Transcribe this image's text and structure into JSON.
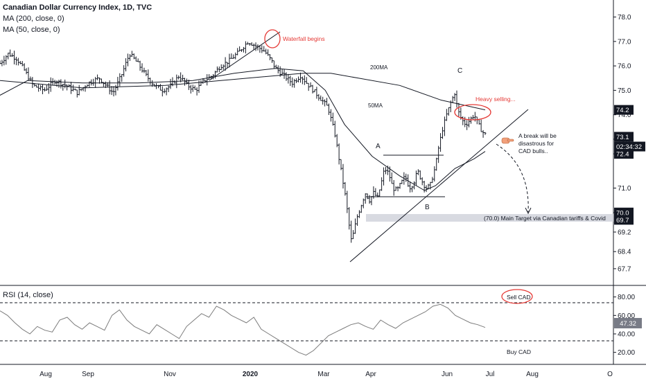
{
  "header": {
    "title": "Canadian Dollar Currency Index, 1D, TVC",
    "ma200_label": "MA (200, close, 0)",
    "ma50_label": "MA (50, close, 0)"
  },
  "rsi_panel": {
    "label": "RSI (14, close)",
    "value_badge": "47.32"
  },
  "colors": {
    "price_bars": "#131722",
    "annotation_red": "#e53935",
    "target_zone": "#d1d4dc",
    "rsi_line": "#7b7b7b",
    "badge_dark": "#131722",
    "badge_grey": "#787b86"
  },
  "chart_data": [
    {
      "type": "ohlc",
      "title": "Canadian Dollar Currency Index, 1D, TVC",
      "ylim": [
        67.3,
        78.3
      ],
      "y_axis_ticks": [
        "78.0",
        "77.0",
        "76.0",
        "75.0",
        "74.0",
        "73.0",
        "72.4",
        "71.0",
        "70.0",
        "69.2",
        "68.4",
        "67.7"
      ],
      "x_axis_ticks": [
        "Aug",
        "Sep",
        "Nov",
        "2020",
        "Mar",
        "Apr",
        "Jun",
        "Jul",
        "Aug",
        "O"
      ],
      "price_badges": [
        {
          "text": "74.2",
          "value": 74.2,
          "style": "dark"
        },
        {
          "text": "73.1",
          "value": 73.1,
          "style": "dark"
        },
        {
          "text": "02:34:32",
          "value": 72.7,
          "style": "dark"
        },
        {
          "text": "72.4",
          "value": 72.4,
          "style": "dark"
        },
        {
          "text": "70.0",
          "value": 70.0,
          "style": "dark"
        },
        {
          "text": "69.7",
          "value": 69.7,
          "style": "dark"
        }
      ],
      "close_path": [
        [
          0,
          76.1
        ],
        [
          0.03,
          76.5
        ],
        [
          0.06,
          76.3
        ],
        [
          0.09,
          75.8
        ],
        [
          0.12,
          75.2
        ],
        [
          0.16,
          75.0
        ],
        [
          0.2,
          75.4
        ],
        [
          0.24,
          75.2
        ],
        [
          0.28,
          74.9
        ],
        [
          0.32,
          75.3
        ],
        [
          0.36,
          75.5
        ],
        [
          0.41,
          74.9
        ],
        [
          0.44,
          75.6
        ],
        [
          0.47,
          76.5
        ],
        [
          0.5,
          76.1
        ],
        [
          0.53,
          75.6
        ],
        [
          0.56,
          75.2
        ],
        [
          0.59,
          75.0
        ],
        [
          0.62,
          75.2
        ],
        [
          0.65,
          75.6
        ],
        [
          0.68,
          75.2
        ],
        [
          0.71,
          75.0
        ],
        [
          0.74,
          75.4
        ],
        [
          0.77,
          75.6
        ],
        [
          0.8,
          76.0
        ],
        [
          0.83,
          76.2
        ],
        [
          0.86,
          76.5
        ],
        [
          0.9,
          77.0
        ],
        [
          0.93,
          76.8
        ],
        [
          0.96,
          76.6
        ],
        [
          0.985,
          76.2
        ],
        [
          1.0,
          75.9
        ],
        [
          1.03,
          75.6
        ],
        [
          1.06,
          75.3
        ],
        [
          1.09,
          75.6
        ],
        [
          1.12,
          75.2
        ],
        [
          1.16,
          74.7
        ],
        [
          1.19,
          74.3
        ],
        [
          1.215,
          73.2
        ],
        [
          1.23,
          72.2
        ],
        [
          1.245,
          71.2
        ],
        [
          1.255,
          70.5
        ],
        [
          1.265,
          69.6
        ],
        [
          1.275,
          68.8
        ],
        [
          1.285,
          69.3
        ],
        [
          1.295,
          69.8
        ],
        [
          1.31,
          70.3
        ],
        [
          1.325,
          70.8
        ],
        [
          1.34,
          70.5
        ],
        [
          1.355,
          70.8
        ],
        [
          1.37,
          70.6
        ],
        [
          1.385,
          71.3
        ],
        [
          1.395,
          71.8
        ],
        [
          1.41,
          71.6
        ],
        [
          1.425,
          71.0
        ],
        [
          1.44,
          70.9
        ],
        [
          1.455,
          71.2
        ],
        [
          1.47,
          71.5
        ],
        [
          1.485,
          71.0
        ],
        [
          1.5,
          71.2
        ],
        [
          1.515,
          71.7
        ],
        [
          1.53,
          71.3
        ],
        [
          1.545,
          71.0
        ],
        [
          1.56,
          71.1
        ],
        [
          1.58,
          71.9
        ],
        [
          1.59,
          72.6
        ],
        [
          1.605,
          73.4
        ],
        [
          1.62,
          74.0
        ],
        [
          1.635,
          74.5
        ],
        [
          1.65,
          74.9
        ],
        [
          1.66,
          74.2
        ],
        [
          1.675,
          73.8
        ],
        [
          1.69,
          73.6
        ],
        [
          1.705,
          73.8
        ],
        [
          1.72,
          74.0
        ],
        [
          1.735,
          73.6
        ],
        [
          1.75,
          73.3
        ],
        [
          1.76,
          73.2
        ]
      ],
      "ma200": [
        [
          0,
          75.4
        ],
        [
          0.3,
          75.1
        ],
        [
          0.6,
          75.2
        ],
        [
          0.9,
          75.5
        ],
        [
          1.1,
          75.7
        ],
        [
          1.2,
          75.7
        ],
        [
          1.3,
          75.5
        ],
        [
          1.45,
          75.2
        ],
        [
          1.6,
          74.6
        ],
        [
          1.76,
          74.2
        ]
      ],
      "ma50": [
        [
          0,
          74.8
        ],
        [
          0.1,
          75.4
        ],
        [
          0.3,
          75.3
        ],
        [
          0.5,
          75.3
        ],
        [
          0.7,
          75.4
        ],
        [
          0.85,
          75.7
        ],
        [
          1.0,
          75.9
        ],
        [
          1.1,
          75.8
        ],
        [
          1.18,
          75.0
        ],
        [
          1.25,
          73.6
        ],
        [
          1.35,
          72.3
        ],
        [
          1.45,
          71.5
        ],
        [
          1.54,
          70.9
        ],
        [
          1.58,
          71.1
        ],
        [
          1.65,
          71.8
        ],
        [
          1.72,
          72.2
        ],
        [
          1.76,
          72.5
        ]
      ]
    },
    {
      "type": "line",
      "title": "RSI (14, close)",
      "ylim": [
        10,
        88
      ],
      "y_axis_ticks": [
        "80.00",
        "60.00",
        "40.00",
        "20.00"
      ],
      "reference_lines": [
        70,
        30
      ],
      "values": [
        65,
        60,
        52,
        45,
        40,
        48,
        44,
        42,
        55,
        58,
        50,
        45,
        52,
        48,
        44,
        60,
        66,
        55,
        48,
        44,
        40,
        50,
        45,
        40,
        35,
        48,
        55,
        62,
        58,
        70,
        66,
        60,
        56,
        52,
        58,
        45,
        40,
        35,
        30,
        25,
        20,
        17,
        22,
        30,
        38,
        42,
        46,
        50,
        52,
        48,
        45,
        55,
        50,
        46,
        52,
        56,
        60,
        64,
        70,
        72,
        68,
        60,
        56,
        52,
        50,
        47
      ]
    }
  ],
  "annotations": {
    "waterfall": "Waterfall begins",
    "ma200": "200MA",
    "ma50": "50MA",
    "heavy_selling": "Heavy selling...",
    "point_a": "A",
    "point_b": "B",
    "point_c": "C",
    "break_note_1": "A break will be",
    "break_note_2": "disastrous for",
    "break_note_3": "CAD bulls..",
    "target_text": "(70.0) Main Target via Canadian tariffs & Covid",
    "sell_cad": "Sell CAD",
    "buy_cad": "Buy CAD"
  }
}
